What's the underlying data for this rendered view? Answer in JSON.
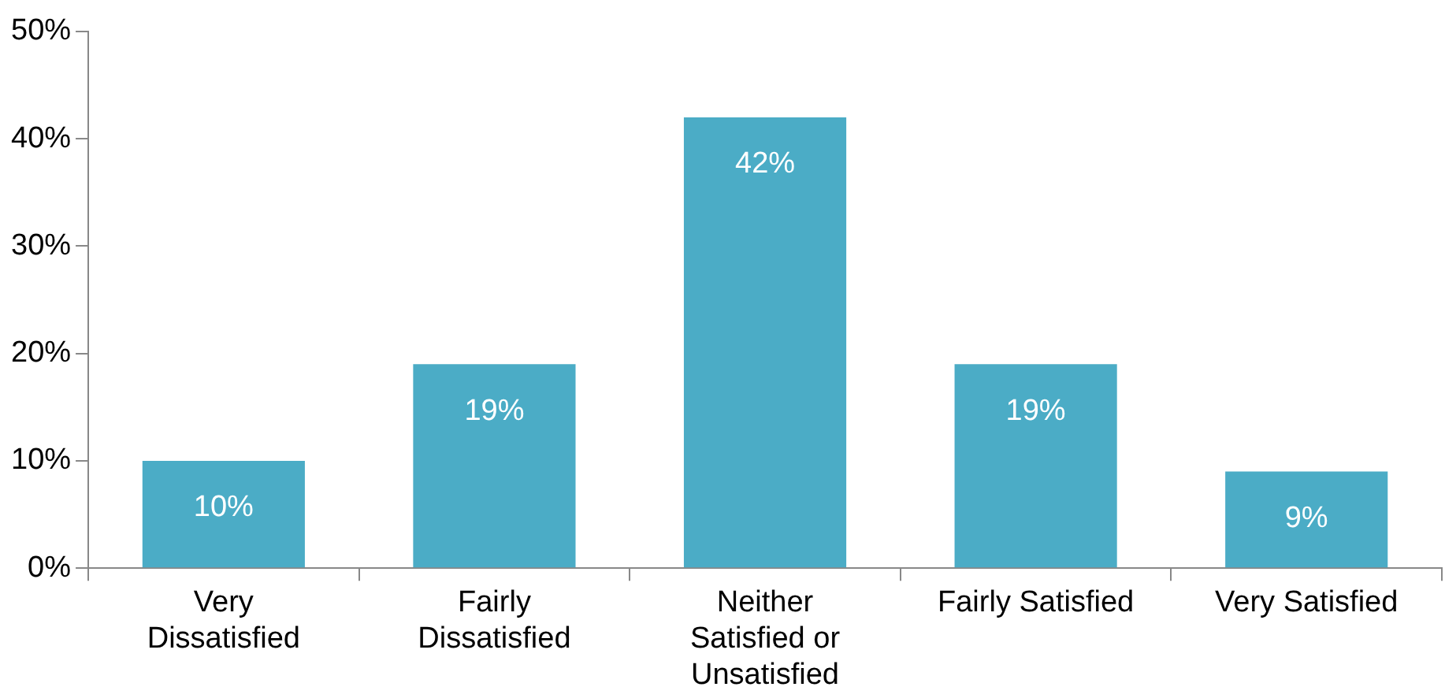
{
  "chart_data": {
    "type": "bar",
    "categories": [
      "Very Dissatisfied",
      "Fairly Dissatisfied",
      "Neither Satisfied or Unsatisfied",
      "Fairly Satisfied",
      "Very Satisfied"
    ],
    "values": [
      10,
      19,
      42,
      19,
      9
    ],
    "color": "#4bacc6",
    "ylim": [
      0,
      50
    ],
    "yticks": [
      {
        "value": 0,
        "label": "0%"
      },
      {
        "value": 10,
        "label": "10%"
      },
      {
        "value": 20,
        "label": "20%"
      },
      {
        "value": 30,
        "label": "30%"
      },
      {
        "value": 40,
        "label": "40%"
      },
      {
        "value": 50,
        "label": "50%"
      }
    ],
    "value_labels": [
      "10%",
      "19%",
      "42%",
      "19%",
      "9%"
    ],
    "grid": false,
    "legend": false
  }
}
